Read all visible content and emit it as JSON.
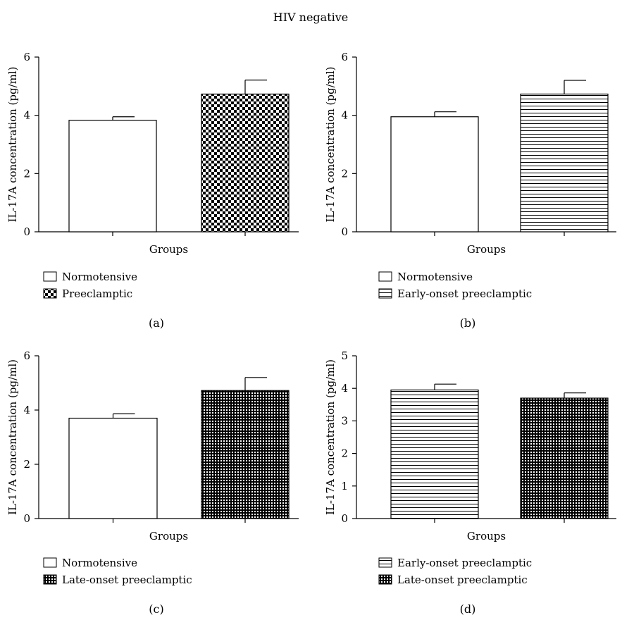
{
  "figure_title": "HIV negative",
  "colors": {
    "axis": "#000000",
    "bar_outline": "#000000",
    "background": "#ffffff"
  },
  "chart_data": [
    {
      "panel_label": "(a)",
      "type": "bar",
      "xlabel": "Groups",
      "ylabel": "IL-17A concentration (pg/ml)",
      "ylim": [
        0,
        6
      ],
      "yticks": [
        "0",
        "2",
        "4",
        "6"
      ],
      "grid": false,
      "legend_placement": "below",
      "series": [
        {
          "name": "Normotensive",
          "value": 3.83,
          "error": 0.12,
          "pattern": "none"
        },
        {
          "name": "Preeclamptic",
          "value": 4.73,
          "error": 0.48,
          "pattern": "checker"
        }
      ]
    },
    {
      "panel_label": "(b)",
      "type": "bar",
      "xlabel": "Groups",
      "ylabel": "IL-17A concentration (pg/ml)",
      "ylim": [
        0,
        6
      ],
      "yticks": [
        "0",
        "2",
        "4",
        "6"
      ],
      "grid": false,
      "legend_placement": "below",
      "series": [
        {
          "name": "Normotensive",
          "value": 3.95,
          "error": 0.17,
          "pattern": "none"
        },
        {
          "name": "Early-onset preeclamptic",
          "value": 4.73,
          "error": 0.47,
          "pattern": "hlines"
        }
      ]
    },
    {
      "panel_label": "(c)",
      "type": "bar",
      "xlabel": "Groups",
      "ylabel": "IL-17A concentration (pg/ml)",
      "ylim": [
        0,
        6
      ],
      "yticks": [
        "0",
        "2",
        "4",
        "6"
      ],
      "grid": false,
      "legend_placement": "below",
      "series": [
        {
          "name": "Normotensive",
          "value": 3.7,
          "error": 0.16,
          "pattern": "none"
        },
        {
          "name": "Late-onset preeclamptic",
          "value": 4.72,
          "error": 0.48,
          "pattern": "grid"
        }
      ]
    },
    {
      "panel_label": "(d)",
      "type": "bar",
      "xlabel": "Groups",
      "ylabel": "IL-17A concentration (pg/ml)",
      "ylim": [
        0,
        5
      ],
      "yticks": [
        "0",
        "1",
        "2",
        "3",
        "4",
        "5"
      ],
      "grid": false,
      "legend_placement": "below",
      "series": [
        {
          "name": "Early-onset preeclamptic",
          "value": 3.95,
          "error": 0.18,
          "pattern": "hlines"
        },
        {
          "name": "Late-onset preeclamptic",
          "value": 3.7,
          "error": 0.16,
          "pattern": "grid"
        }
      ]
    }
  ]
}
